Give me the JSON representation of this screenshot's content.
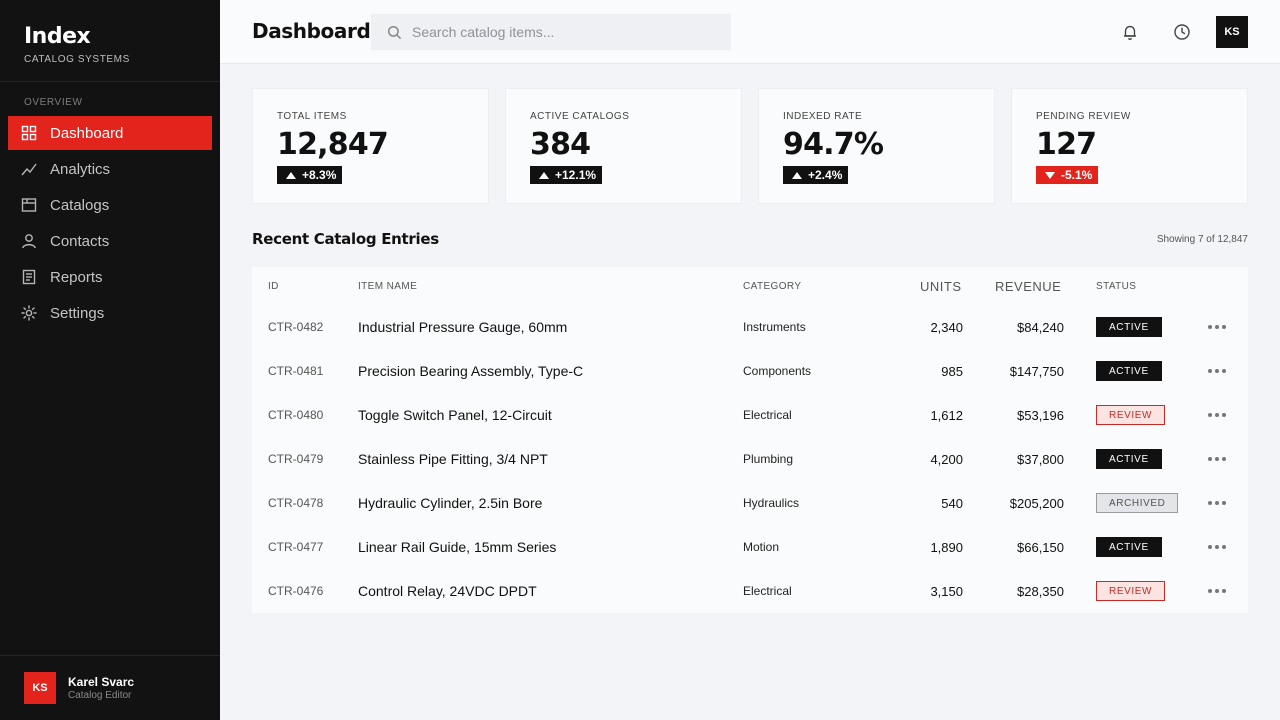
{
  "brand": {
    "title": "Index",
    "subtitle": "CATALOG SYSTEMS"
  },
  "sidebar": {
    "section": "OVERVIEW",
    "items": [
      {
        "label": "Dashboard",
        "icon": "grid-icon",
        "active": true
      },
      {
        "label": "Analytics",
        "icon": "trend-line-icon",
        "active": false
      },
      {
        "label": "Catalogs",
        "icon": "catalog-icon",
        "active": false
      },
      {
        "label": "Contacts",
        "icon": "person-icon",
        "active": false
      },
      {
        "label": "Reports",
        "icon": "document-icon",
        "active": false
      },
      {
        "label": "Settings",
        "icon": "gear-icon",
        "active": false
      }
    ],
    "user": {
      "initials": "KS",
      "name": "Karel Svarc",
      "role": "Catalog Editor"
    }
  },
  "header": {
    "title": "Dashboard",
    "search_placeholder": "Search catalog items...",
    "avatar_initials": "KS"
  },
  "stats": [
    {
      "label": "TOTAL ITEMS",
      "value": "12,847",
      "delta": "+8.3%",
      "direction": "up"
    },
    {
      "label": "ACTIVE CATALOGS",
      "value": "384",
      "delta": "+12.1%",
      "direction": "up"
    },
    {
      "label": "INDEXED RATE",
      "value": "94.7%",
      "delta": "+2.4%",
      "direction": "up"
    },
    {
      "label": "PENDING REVIEW",
      "value": "127",
      "delta": "-5.1%",
      "direction": "down"
    }
  ],
  "table": {
    "title": "Recent Catalog Entries",
    "meta": "Showing 7 of 12,847",
    "columns": {
      "id": "ID",
      "name": "ITEM NAME",
      "category": "CATEGORY",
      "units": "UNITS",
      "revenue": "REVENUE",
      "status": "STATUS"
    },
    "rows": [
      {
        "id": "CTR-0482",
        "name": "Industrial Pressure Gauge, 60mm",
        "category": "Instruments",
        "units": "2,340",
        "revenue": "$84,240",
        "status": "ACTIVE"
      },
      {
        "id": "CTR-0481",
        "name": "Precision Bearing Assembly, Type-C",
        "category": "Components",
        "units": "985",
        "revenue": "$147,750",
        "status": "ACTIVE"
      },
      {
        "id": "CTR-0480",
        "name": "Toggle Switch Panel, 12-Circuit",
        "category": "Electrical",
        "units": "1,612",
        "revenue": "$53,196",
        "status": "REVIEW"
      },
      {
        "id": "CTR-0479",
        "name": "Stainless Pipe Fitting, 3/4 NPT",
        "category": "Plumbing",
        "units": "4,200",
        "revenue": "$37,800",
        "status": "ACTIVE"
      },
      {
        "id": "CTR-0478",
        "name": "Hydraulic Cylinder, 2.5in Bore",
        "category": "Hydraulics",
        "units": "540",
        "revenue": "$205,200",
        "status": "ARCHIVED"
      },
      {
        "id": "CTR-0477",
        "name": "Linear Rail Guide, 15mm Series",
        "category": "Motion",
        "units": "1,890",
        "revenue": "$66,150",
        "status": "ACTIVE"
      },
      {
        "id": "CTR-0476",
        "name": "Control Relay, 24VDC DPDT",
        "category": "Electrical",
        "units": "3,150",
        "revenue": "$28,350",
        "status": "REVIEW"
      }
    ]
  },
  "colors": {
    "accent": "#e2241c",
    "sidebar_bg": "#121212",
    "page_bg": "#f3f4f7"
  }
}
